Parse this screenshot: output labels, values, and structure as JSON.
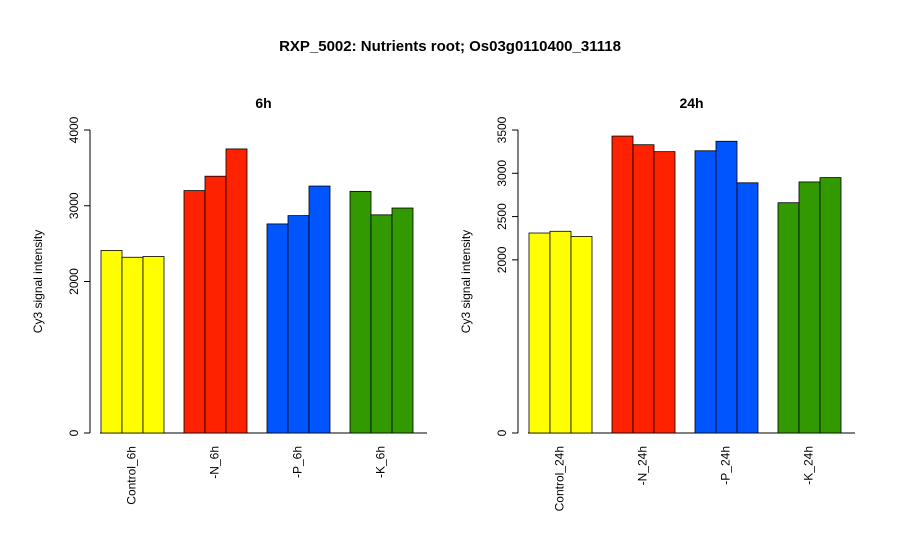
{
  "title": "RXP_5002: Nutrients root; Os03g0110400_31118",
  "chart_data": [
    {
      "type": "bar",
      "title": "6h",
      "ylabel": "Cy3 signal intensity",
      "ylim": [
        0,
        4000
      ],
      "yticks": [
        0,
        2000,
        3000,
        4000
      ],
      "categories": [
        "Control_6h",
        "-N_6h",
        "-P_6h",
        "-K_6h"
      ],
      "groups": [
        {
          "name": "Control_6h",
          "color": "#ffff00",
          "values": [
            2410,
            2320,
            2330
          ]
        },
        {
          "name": "-N_6h",
          "color": "#ff2200",
          "values": [
            3200,
            3390,
            3750
          ]
        },
        {
          "name": "-P_6h",
          "color": "#0055ff",
          "values": [
            2760,
            2870,
            3260
          ]
        },
        {
          "name": "-K_6h",
          "color": "#339900",
          "values": [
            3190,
            2880,
            2970
          ]
        }
      ]
    },
    {
      "type": "bar",
      "title": "24h",
      "ylabel": "Cy3 signal intensity",
      "ylim": [
        0,
        3500
      ],
      "yticks": [
        0,
        2000,
        2500,
        3000,
        3500
      ],
      "categories": [
        "Control_24h",
        "-N_24h",
        "-P_24h",
        "-K_24h"
      ],
      "groups": [
        {
          "name": "Control_24h",
          "color": "#ffff00",
          "values": [
            2310,
            2330,
            2270
          ]
        },
        {
          "name": "-N_24h",
          "color": "#ff2200",
          "values": [
            3430,
            3330,
            3250
          ]
        },
        {
          "name": "-P_24h",
          "color": "#0055ff",
          "values": [
            3260,
            3370,
            2890
          ]
        },
        {
          "name": "-K_24h",
          "color": "#339900",
          "values": [
            2660,
            2900,
            2950
          ]
        }
      ]
    }
  ]
}
